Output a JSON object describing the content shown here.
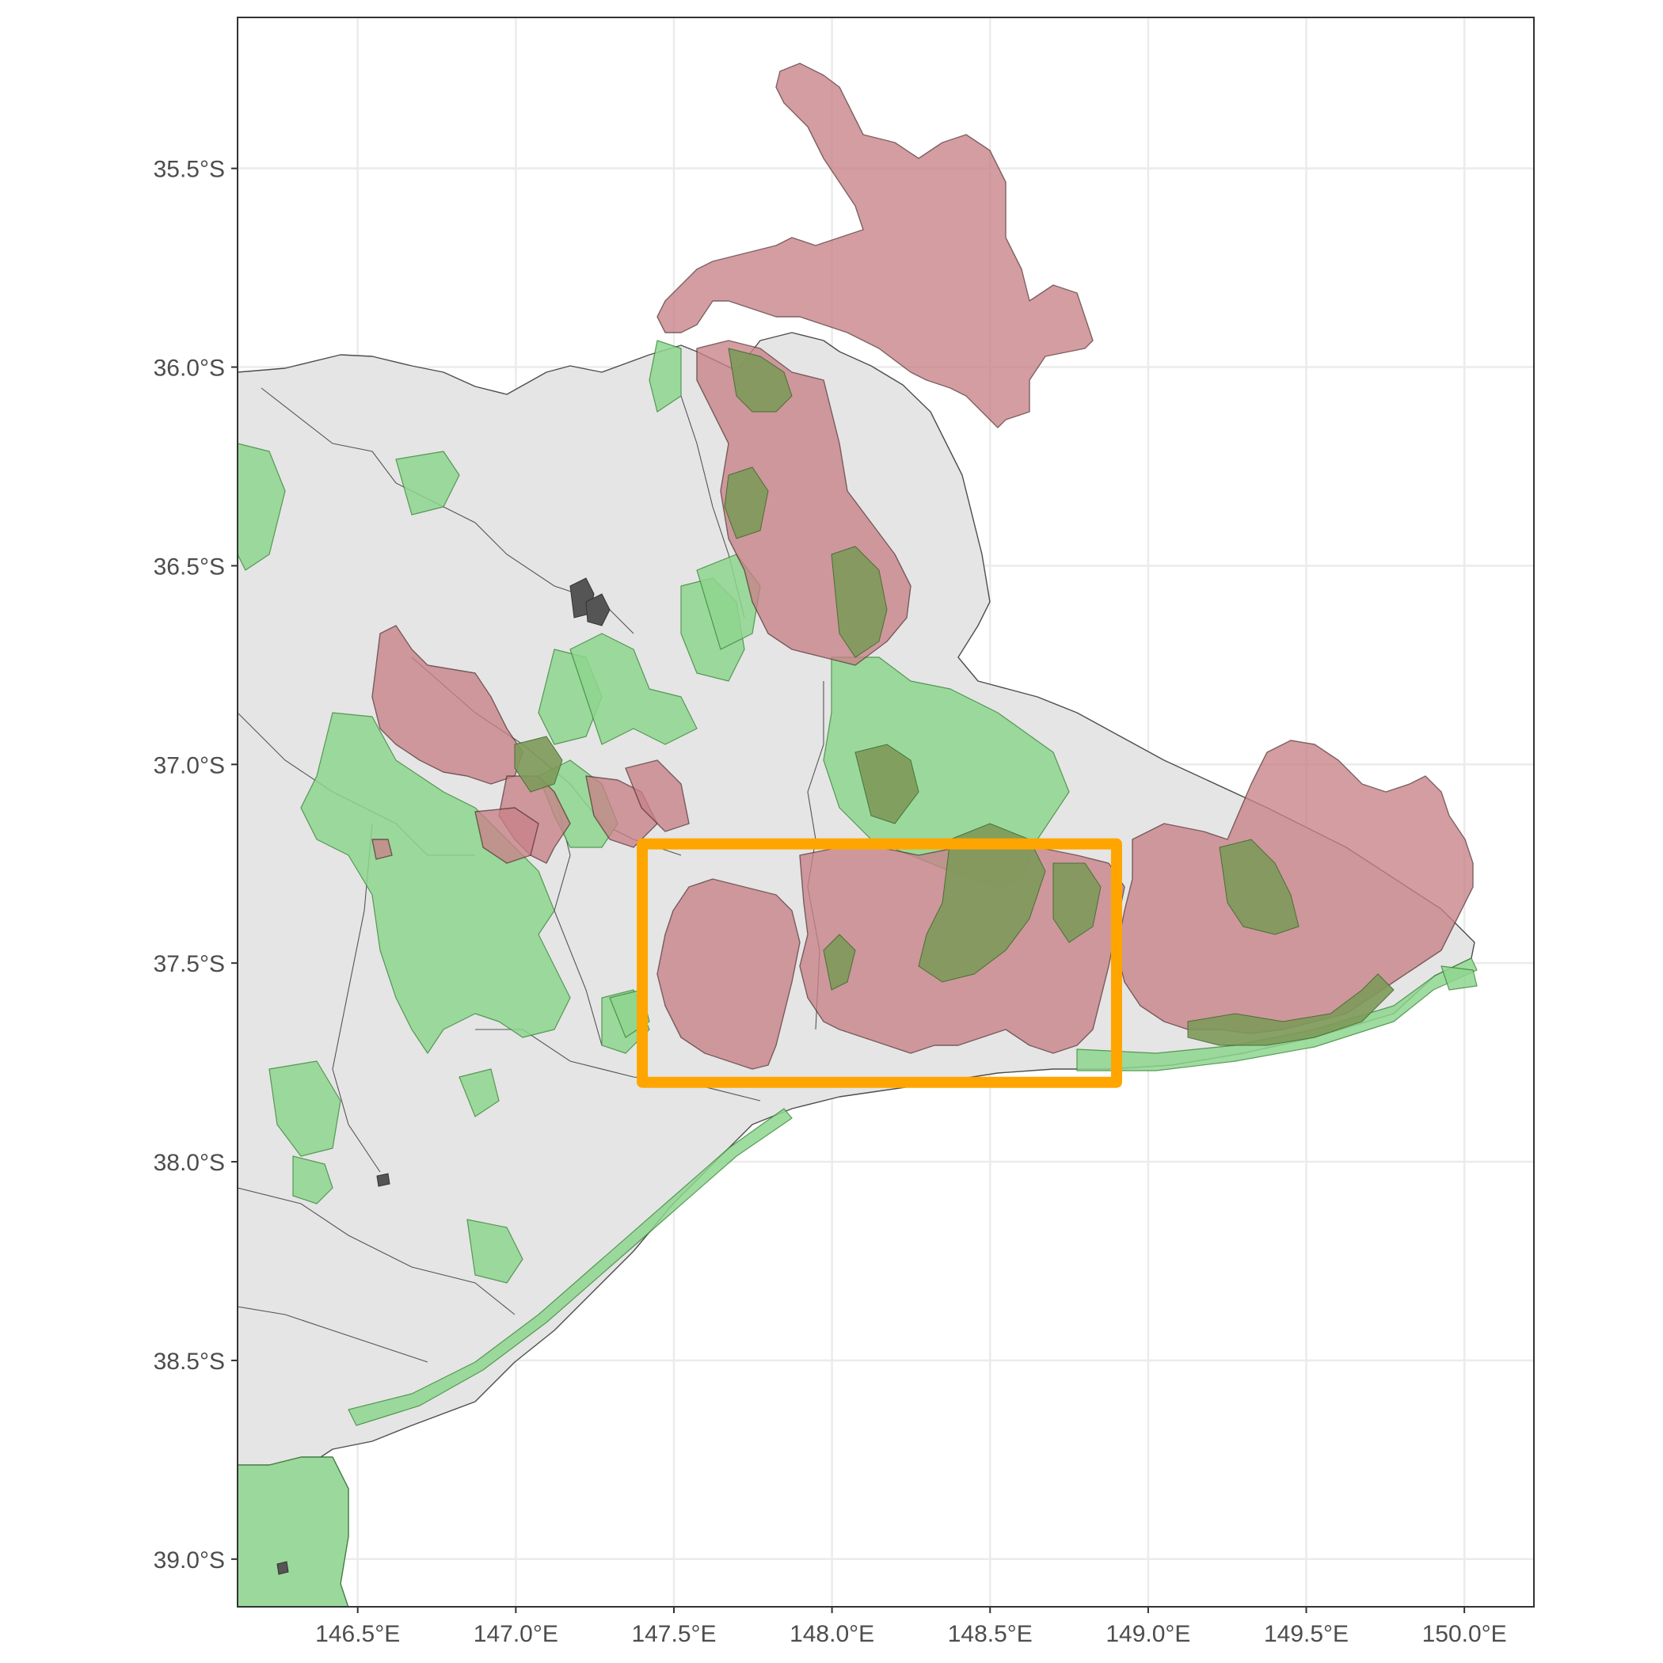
{
  "map": {
    "x_ticks": [
      {
        "lon": 146.5,
        "label": "146.5°E"
      },
      {
        "lon": 147.0,
        "label": "147.0°E"
      },
      {
        "lon": 147.5,
        "label": "147.5°E"
      },
      {
        "lon": 148.0,
        "label": "148.0°E"
      },
      {
        "lon": 148.5,
        "label": "148.5°E"
      },
      {
        "lon": 149.0,
        "label": "149.0°E"
      },
      {
        "lon": 149.5,
        "label": "149.5°E"
      },
      {
        "lon": 150.0,
        "label": "150.0°E"
      }
    ],
    "y_ticks": [
      {
        "lat": -35.5,
        "label": "35.5°S"
      },
      {
        "lat": -36.0,
        "label": "36.0°S"
      },
      {
        "lat": -36.5,
        "label": "36.5°S"
      },
      {
        "lat": -37.0,
        "label": "37.0°S"
      },
      {
        "lat": -37.5,
        "label": "37.5°S"
      },
      {
        "lat": -38.0,
        "label": "38.0°S"
      },
      {
        "lat": -38.5,
        "label": "38.5°S"
      },
      {
        "lat": -39.0,
        "label": "39.0°S"
      }
    ],
    "lon_range": [
      146.12,
      150.22
    ],
    "lat_range": [
      -39.12,
      -35.12
    ],
    "highlight_box": {
      "lon": [
        147.4,
        148.9
      ],
      "lat": [
        -37.8,
        -37.2
      ],
      "color": "#FFA500"
    },
    "colors": {
      "land": "#e5e5e5",
      "reserve": "#8fd68f",
      "burned": "#c88288",
      "overlap": "#7f9a5a",
      "panel_border": "#333333",
      "grid": "#ebebeb"
    }
  }
}
